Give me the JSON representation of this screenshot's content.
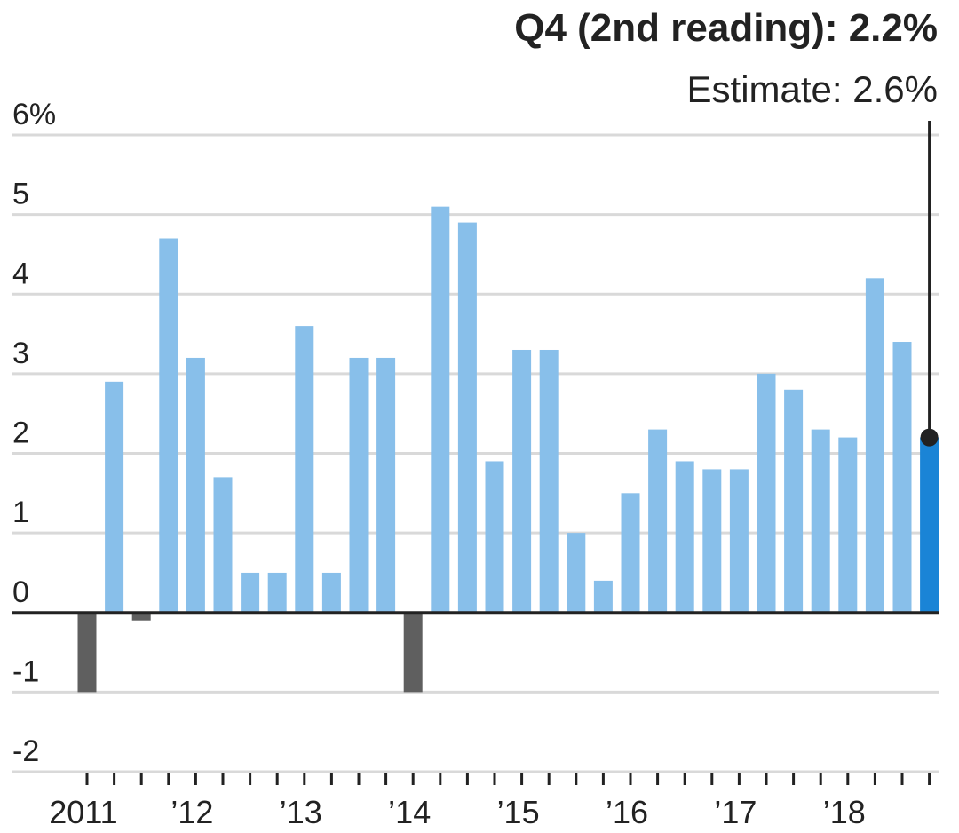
{
  "chart_data": {
    "type": "bar",
    "title": "",
    "xlabel": "",
    "ylabel": "",
    "ylim": [
      -2,
      6
    ],
    "grid": true,
    "y_ticks": [
      {
        "value": 6,
        "label": "6%"
      },
      {
        "value": 5,
        "label": "5"
      },
      {
        "value": 4,
        "label": "4"
      },
      {
        "value": 3,
        "label": "3"
      },
      {
        "value": 2,
        "label": "2"
      },
      {
        "value": 1,
        "label": "1"
      },
      {
        "value": 0,
        "label": "0"
      },
      {
        "value": -1,
        "label": "-1"
      },
      {
        "value": -2,
        "label": "-2"
      }
    ],
    "x_tick_labels": [
      {
        "index": 0,
        "label": "2011"
      },
      {
        "index": 4,
        "label": "’12"
      },
      {
        "index": 8,
        "label": "’13"
      },
      {
        "index": 12,
        "label": "’14"
      },
      {
        "index": 16,
        "label": "’15"
      },
      {
        "index": 20,
        "label": "’16"
      },
      {
        "index": 24,
        "label": "’17"
      },
      {
        "index": 28,
        "label": "’18"
      }
    ],
    "categories": [
      "2011 Q1",
      "2011 Q2",
      "2011 Q3",
      "2011 Q4",
      "2012 Q1",
      "2012 Q2",
      "2012 Q3",
      "2012 Q4",
      "2013 Q1",
      "2013 Q2",
      "2013 Q3",
      "2013 Q4",
      "2014 Q1",
      "2014 Q2",
      "2014 Q3",
      "2014 Q4",
      "2015 Q1",
      "2015 Q2",
      "2015 Q3",
      "2015 Q4",
      "2016 Q1",
      "2016 Q2",
      "2016 Q3",
      "2016 Q4",
      "2017 Q1",
      "2017 Q2",
      "2017 Q3",
      "2017 Q4",
      "2018 Q1",
      "2018 Q2",
      "2018 Q3",
      "2018 Q4"
    ],
    "values": [
      -1.0,
      2.9,
      -0.1,
      4.7,
      3.2,
      1.7,
      0.5,
      0.5,
      3.6,
      0.5,
      3.2,
      3.2,
      -1.0,
      5.1,
      4.9,
      1.9,
      3.3,
      3.3,
      1.0,
      0.4,
      1.5,
      2.3,
      1.9,
      1.8,
      1.8,
      3.0,
      2.8,
      2.3,
      2.2,
      4.2,
      3.4,
      2.2
    ],
    "colors": {
      "positive": "#88bfea",
      "negative": "#5f5f5f",
      "highlight": "#1a84d6",
      "grid": "#d9d9d9",
      "axis": "#222222"
    },
    "highlight_index": 31,
    "annotation": {
      "title": "Q4 (2nd reading): 2.2%",
      "subtitle": "Estimate: 2.6%"
    }
  }
}
